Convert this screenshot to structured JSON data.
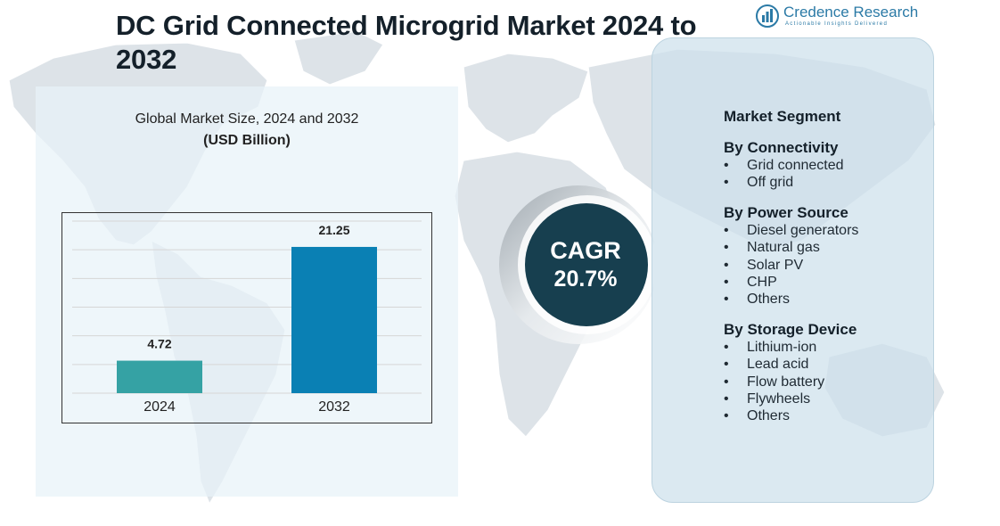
{
  "header": {
    "title": "DC Grid Connected Microgrid Market  2024 to 2032"
  },
  "logo": {
    "name": "Credence Research",
    "tagline": "Actionable Insights Delivered",
    "color": "#2b7aa6"
  },
  "chart_data": {
    "type": "bar",
    "title": "Global Market Size, 2024 and 2032",
    "ylabel": "(USD Billion)",
    "xlabel": "",
    "categories": [
      "2024",
      "2032"
    ],
    "values": [
      4.72,
      21.25
    ],
    "data_labels": [
      "4.72",
      "21.25"
    ],
    "colors": [
      "#35a2a4",
      "#0a80b4"
    ],
    "ylim": [
      0,
      25
    ],
    "grid": true,
    "legend": "none"
  },
  "cagr": {
    "label": "CAGR",
    "value": "20.7%",
    "color": "#173f4f"
  },
  "segments": {
    "heading": "Market Segment",
    "groups": [
      {
        "title": "By Connectivity",
        "items": [
          "Grid connected",
          "Off grid"
        ]
      },
      {
        "title": "By Power Source",
        "items": [
          "Diesel generators",
          "Natural gas",
          "Solar PV",
          "CHP",
          "Others"
        ]
      },
      {
        "title": "By Storage Device",
        "items": [
          "Lithium-ion",
          "Lead acid",
          "Flow battery",
          "Flywheels",
          "Others"
        ]
      }
    ]
  }
}
